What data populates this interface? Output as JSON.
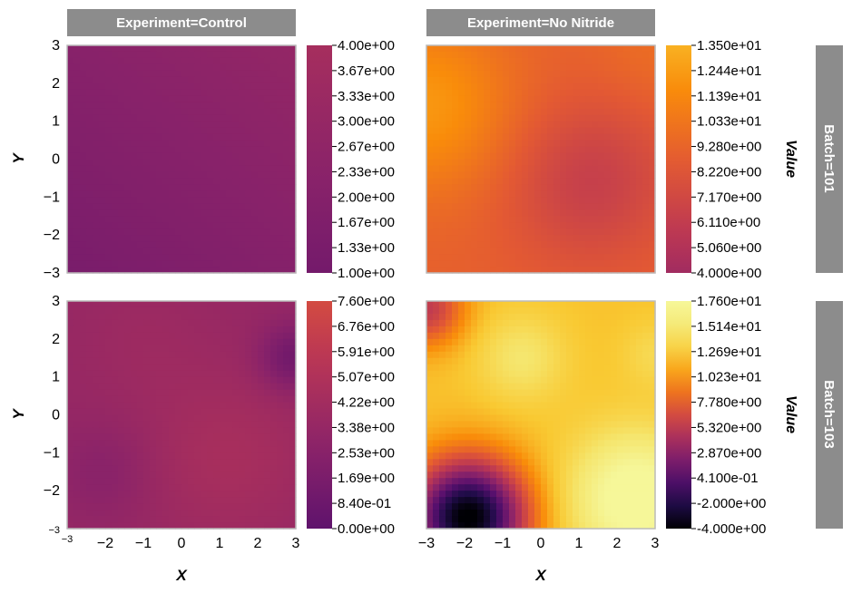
{
  "chart_data": {
    "type": "heatmap",
    "x_label": "X",
    "y_label": "Y",
    "colorbar_label": "Value",
    "x_ticks": [
      "−3",
      "−2",
      "−1",
      "0",
      "1",
      "2",
      "3"
    ],
    "y_ticks": [
      "3",
      "2",
      "1",
      "0",
      "−1",
      "−2",
      "−3"
    ],
    "columns": [
      "Experiment=Control",
      "Experiment=No Nitride"
    ],
    "rows": [
      "Batch=101",
      "Batch=103"
    ],
    "xlim": [
      -3,
      3
    ],
    "ylim": [
      -3,
      3
    ],
    "colormap": "inferno",
    "panels": [
      {
        "column": "Experiment=Control",
        "row": "Batch=101",
        "range": [
          1.0,
          4.0
        ],
        "colorbar_ticks": [
          "4.00e+00",
          "3.67e+00",
          "3.33e+00",
          "3.00e+00",
          "2.67e+00",
          "2.33e+00",
          "2.00e+00",
          "1.67e+00",
          "1.33e+00",
          "1.00e+00"
        ],
        "field": {
          "base": 2.1,
          "gradient_x": 0.12,
          "gradient_y": 0.14,
          "bumps": []
        }
      },
      {
        "column": "Experiment=No Nitride",
        "row": "Batch=101",
        "range": [
          4.0,
          13.5
        ],
        "colorbar_ticks": [
          "1.350e+01",
          "1.244e+01",
          "1.139e+01",
          "1.033e+01",
          "9.280e+00",
          "8.220e+00",
          "7.170e+00",
          "6.110e+00",
          "5.060e+00",
          "4.000e+00"
        ],
        "field": {
          "base": 9.0,
          "gradient_x": 0,
          "gradient_y": 0,
          "bumps": [
            {
              "x": -3.0,
              "y": 1.4,
              "amp": 3.2,
              "sigma": 1.6
            },
            {
              "x": 1.3,
              "y": -0.6,
              "amp": -2.6,
              "sigma": 1.5
            },
            {
              "x": 3.0,
              "y": 3.0,
              "amp": 0.8,
              "sigma": 1.2
            }
          ]
        }
      },
      {
        "column": "Experiment=Control",
        "row": "Batch=103",
        "range": [
          0.0,
          7.6
        ],
        "colorbar_ticks": [
          "7.60e+00",
          "6.76e+00",
          "5.91e+00",
          "5.07e+00",
          "4.22e+00",
          "3.38e+00",
          "2.53e+00",
          "1.69e+00",
          "8.40e-01",
          "0.00e+00"
        ],
        "field": {
          "base": 3.4,
          "gradient_x": 0,
          "gradient_y": 0,
          "bumps": [
            {
              "x": 2.9,
              "y": 1.5,
              "amp": -2.4,
              "sigma": 0.6
            },
            {
              "x": 1.2,
              "y": -1.1,
              "amp": 1.1,
              "sigma": 1.6
            },
            {
              "x": -2.0,
              "y": -1.5,
              "amp": -0.9,
              "sigma": 0.9
            },
            {
              "x": -1.0,
              "y": 2.0,
              "amp": 0.4,
              "sigma": 1.2
            }
          ]
        }
      },
      {
        "column": "Experiment=No Nitride",
        "row": "Batch=103",
        "range": [
          -4.0,
          17.6
        ],
        "colorbar_ticks": [
          "1.760e+01",
          "1.514e+01",
          "1.269e+01",
          "1.023e+01",
          "7.780e+00",
          "5.320e+00",
          "2.870e+00",
          "4.100e-01",
          "-2.000e+00",
          "-4.000e+00"
        ],
        "field": {
          "base": 12.2,
          "gradient_x": 0,
          "gradient_y": 0,
          "bumps": [
            {
              "x": -1.9,
              "y": -2.7,
              "amp": -16.5,
              "sigma": 1.05
            },
            {
              "x": 2.5,
              "y": -2.2,
              "amp": 6.5,
              "sigma": 1.2
            },
            {
              "x": -0.5,
              "y": 1.5,
              "amp": 2.6,
              "sigma": 0.8
            },
            {
              "x": -3.0,
              "y": 2.8,
              "amp": -6.5,
              "sigma": 0.7
            },
            {
              "x": 3.0,
              "y": 1.6,
              "amp": 1.5,
              "sigma": 0.6
            }
          ]
        }
      }
    ]
  }
}
